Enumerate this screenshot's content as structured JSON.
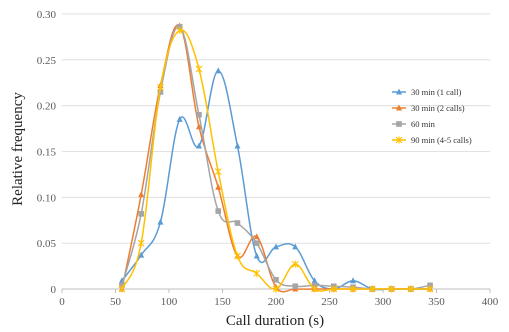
{
  "chart_data": {
    "type": "line",
    "xlabel": "Call duration (s)",
    "ylabel": "Relative frequency",
    "xlim": [
      0,
      400
    ],
    "ylim": [
      0,
      0.3
    ],
    "xticks": [
      0,
      50,
      100,
      150,
      200,
      250,
      300,
      350,
      400
    ],
    "yticks": [
      0,
      0.05,
      0.1,
      0.15,
      0.2,
      0.25,
      0.3
    ],
    "xtick_labels": [
      "0",
      "50",
      "100",
      "150",
      "200",
      "250",
      "300",
      "350",
      "400"
    ],
    "ytick_labels": [
      "0",
      "0.05",
      "0.10",
      "0.15",
      "0.20",
      "0.25",
      "0.30"
    ],
    "grid": "horizontal",
    "legend_position": "right",
    "series": [
      {
        "name": "30 min (1 call)",
        "color": "#5B9BD5",
        "marker": "triangle",
        "points": [
          [
            56,
            0.009
          ],
          [
            74,
            0.037
          ],
          [
            92,
            0.073
          ],
          [
            110,
            0.185
          ],
          [
            128,
            0.156
          ],
          [
            146,
            0.238
          ],
          [
            164,
            0.156
          ],
          [
            182,
            0.036
          ],
          [
            200,
            0.046
          ],
          [
            218,
            0.046
          ],
          [
            236,
            0.009
          ],
          [
            254,
            0.0
          ],
          [
            272,
            0.009
          ],
          [
            290,
            0.0
          ],
          [
            308,
            0.0
          ],
          [
            326,
            0.0
          ],
          [
            344,
            0.0
          ]
        ]
      },
      {
        "name": "30 min (2 calls)",
        "color": "#ED7D31",
        "marker": "triangle",
        "points": [
          [
            56,
            0.0
          ],
          [
            74,
            0.103
          ],
          [
            92,
            0.222
          ],
          [
            110,
            0.287
          ],
          [
            128,
            0.177
          ],
          [
            146,
            0.111
          ],
          [
            164,
            0.036
          ],
          [
            182,
            0.057
          ],
          [
            200,
            0.002
          ],
          [
            218,
            0.0
          ],
          [
            236,
            0.0
          ],
          [
            254,
            0.0
          ],
          [
            272,
            0.0
          ],
          [
            290,
            0.0
          ],
          [
            308,
            0.0
          ],
          [
            326,
            0.0
          ],
          [
            344,
            0.0
          ]
        ]
      },
      {
        "name": "60 min",
        "color": "#A5A5A5",
        "marker": "square",
        "points": [
          [
            56,
            0.004
          ],
          [
            74,
            0.082
          ],
          [
            92,
            0.215
          ],
          [
            110,
            0.286
          ],
          [
            128,
            0.19
          ],
          [
            146,
            0.085
          ],
          [
            164,
            0.072
          ],
          [
            182,
            0.05
          ],
          [
            200,
            0.01
          ],
          [
            218,
            0.003
          ],
          [
            236,
            0.004
          ],
          [
            254,
            0.003
          ],
          [
            272,
            0.002
          ],
          [
            290,
            0.0
          ],
          [
            308,
            0.0
          ],
          [
            326,
            0.0
          ],
          [
            344,
            0.004
          ]
        ]
      },
      {
        "name": "90 min (4-5 calls)",
        "color": "#FFC000",
        "marker": "star",
        "points": [
          [
            56,
            0.0
          ],
          [
            74,
            0.05
          ],
          [
            92,
            0.22
          ],
          [
            110,
            0.282
          ],
          [
            128,
            0.24
          ],
          [
            146,
            0.128
          ],
          [
            164,
            0.036
          ],
          [
            182,
            0.017
          ],
          [
            200,
            0.0
          ],
          [
            218,
            0.027
          ],
          [
            236,
            0.0
          ],
          [
            254,
            0.0
          ],
          [
            272,
            0.0
          ],
          [
            290,
            0.0
          ],
          [
            308,
            0.0
          ],
          [
            326,
            0.0
          ],
          [
            344,
            0.0
          ]
        ]
      }
    ]
  }
}
